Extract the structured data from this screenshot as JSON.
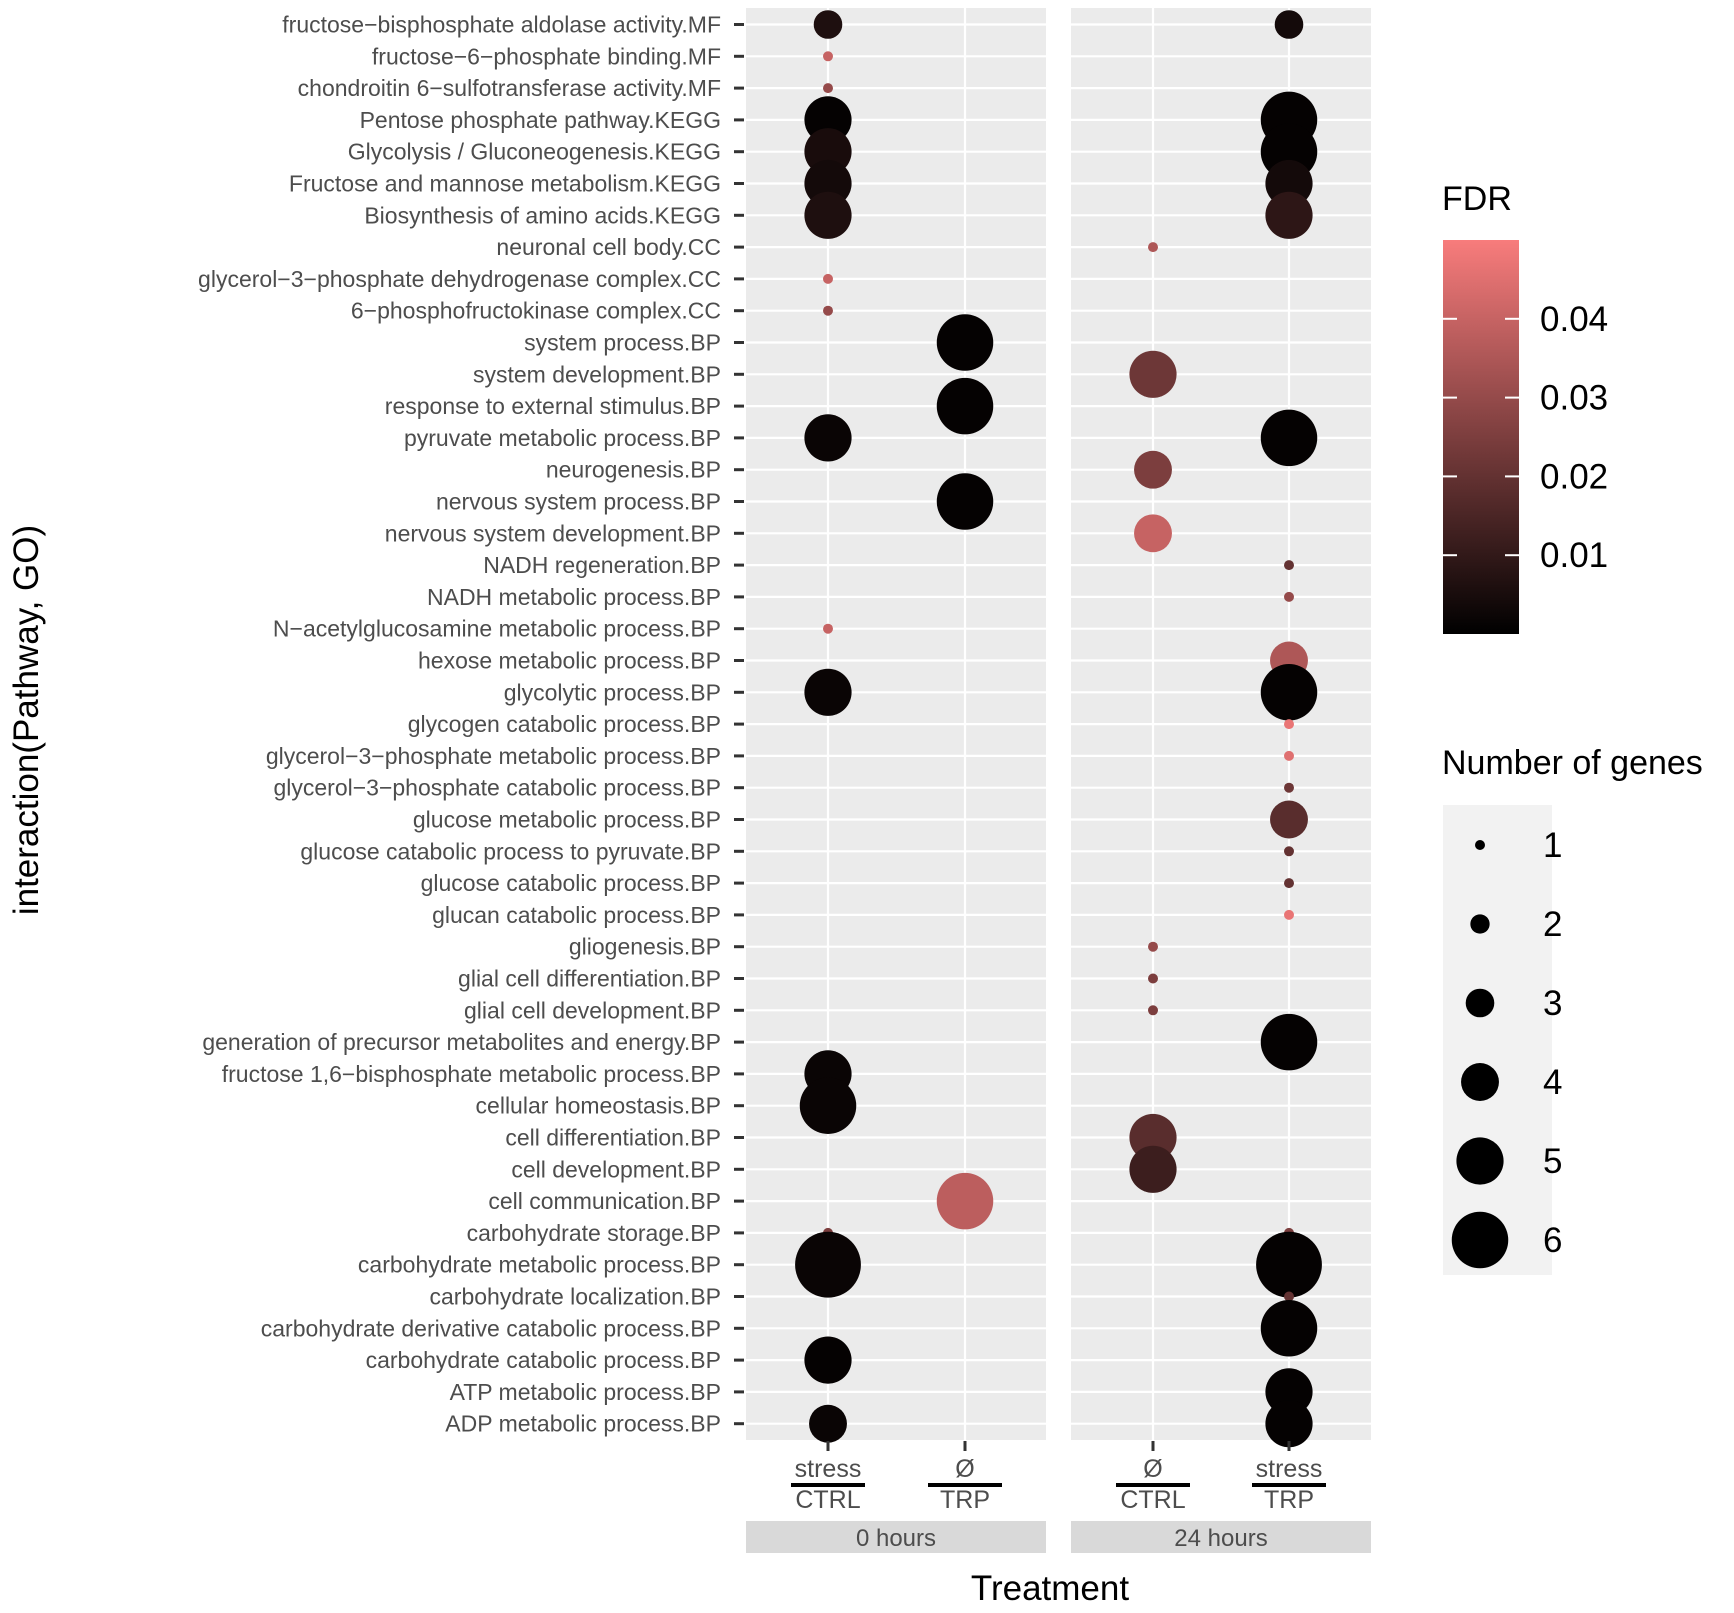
{
  "chart_data": {
    "type": "scatter",
    "xlabel": "Treatment",
    "ylabel": "interaction(Pathway, GO)",
    "panels": [
      {
        "name": "0 hours",
        "groups": [
          {
            "key": "g0a",
            "top": "stress",
            "bottom": "CTRL"
          },
          {
            "key": "g0b",
            "top": "Ø",
            "bottom": "TRP"
          }
        ]
      },
      {
        "name": "24 hours",
        "groups": [
          {
            "key": "g24a",
            "top": "Ø",
            "bottom": "CTRL"
          },
          {
            "key": "g24b",
            "top": "stress",
            "bottom": "TRP"
          }
        ]
      }
    ],
    "categories": [
      "fructose−bisphosphate aldolase activity.MF",
      "fructose−6−phosphate binding.MF",
      "chondroitin 6−sulfotransferase activity.MF",
      "Pentose phosphate pathway.KEGG",
      "Glycolysis / Gluconeogenesis.KEGG",
      "Fructose and mannose metabolism.KEGG",
      "Biosynthesis of amino acids.KEGG",
      "neuronal cell body.CC",
      "glycerol−3−phosphate dehydrogenase complex.CC",
      "6−phosphofructokinase complex.CC",
      "system process.BP",
      "system development.BP",
      "response to external stimulus.BP",
      "pyruvate metabolic process.BP",
      "neurogenesis.BP",
      "nervous system process.BP",
      "nervous system development.BP",
      "NADH regeneration.BP",
      "NADH metabolic process.BP",
      "N−acetylglucosamine metabolic process.BP",
      "hexose metabolic process.BP",
      "glycolytic process.BP",
      "glycogen catabolic process.BP",
      "glycerol−3−phosphate metabolic process.BP",
      "glycerol−3−phosphate catabolic process.BP",
      "glucose metabolic process.BP",
      "glucose catabolic process to pyruvate.BP",
      "glucose catabolic process.BP",
      "glucan catabolic process.BP",
      "gliogenesis.BP",
      "glial cell differentiation.BP",
      "glial cell development.BP",
      "generation of precursor metabolites and energy.BP",
      "fructose 1,6−bisphosphate metabolic process.BP",
      "cellular homeostasis.BP",
      "cell differentiation.BP",
      "cell development.BP",
      "cell communication.BP",
      "carbohydrate storage.BP",
      "carbohydrate metabolic process.BP",
      "carbohydrate localization.BP",
      "carbohydrate derivative catabolic process.BP",
      "carbohydrate catabolic process.BP",
      "ATP metabolic process.BP",
      "ADP metabolic process.BP"
    ],
    "points": [
      {
        "cat": 0,
        "group": "g0a",
        "genes": 3,
        "fdr": 0.006
      },
      {
        "cat": 0,
        "group": "g24b",
        "genes": 3,
        "fdr": 0.004
      },
      {
        "cat": 1,
        "group": "g0a",
        "genes": 1,
        "fdr": 0.04
      },
      {
        "cat": 2,
        "group": "g0a",
        "genes": 1,
        "fdr": 0.03
      },
      {
        "cat": 3,
        "group": "g0a",
        "genes": 5,
        "fdr": 0.001
      },
      {
        "cat": 3,
        "group": "g24b",
        "genes": 6,
        "fdr": 0.001
      },
      {
        "cat": 4,
        "group": "g0a",
        "genes": 5,
        "fdr": 0.005
      },
      {
        "cat": 4,
        "group": "g24b",
        "genes": 6,
        "fdr": 0.001
      },
      {
        "cat": 5,
        "group": "g0a",
        "genes": 5,
        "fdr": 0.004
      },
      {
        "cat": 5,
        "group": "g24b",
        "genes": 5,
        "fdr": 0.004
      },
      {
        "cat": 6,
        "group": "g0a",
        "genes": 5,
        "fdr": 0.006
      },
      {
        "cat": 6,
        "group": "g24b",
        "genes": 5,
        "fdr": 0.009
      },
      {
        "cat": 7,
        "group": "g24a",
        "genes": 1,
        "fdr": 0.035
      },
      {
        "cat": 8,
        "group": "g0a",
        "genes": 1,
        "fdr": 0.04
      },
      {
        "cat": 9,
        "group": "g0a",
        "genes": 1,
        "fdr": 0.03
      },
      {
        "cat": 10,
        "group": "g0b",
        "genes": 6,
        "fdr": 0.001
      },
      {
        "cat": 11,
        "group": "g24a",
        "genes": 5,
        "fdr": 0.022
      },
      {
        "cat": 12,
        "group": "g0b",
        "genes": 6,
        "fdr": 0.001
      },
      {
        "cat": 13,
        "group": "g0a",
        "genes": 5,
        "fdr": 0.002
      },
      {
        "cat": 13,
        "group": "g24b",
        "genes": 6,
        "fdr": 0.001
      },
      {
        "cat": 14,
        "group": "g24a",
        "genes": 4,
        "fdr": 0.025
      },
      {
        "cat": 15,
        "group": "g0b",
        "genes": 6,
        "fdr": 0.001
      },
      {
        "cat": 16,
        "group": "g24a",
        "genes": 4,
        "fdr": 0.04
      },
      {
        "cat": 17,
        "group": "g24b",
        "genes": 1,
        "fdr": 0.02
      },
      {
        "cat": 18,
        "group": "g24b",
        "genes": 1,
        "fdr": 0.03
      },
      {
        "cat": 19,
        "group": "g0a",
        "genes": 1,
        "fdr": 0.04
      },
      {
        "cat": 20,
        "group": "g24b",
        "genes": 4,
        "fdr": 0.035
      },
      {
        "cat": 21,
        "group": "g0a",
        "genes": 5,
        "fdr": 0.002
      },
      {
        "cat": 21,
        "group": "g24b",
        "genes": 6,
        "fdr": 0.001
      },
      {
        "cat": 22,
        "group": "g24b",
        "genes": 1,
        "fdr": 0.047
      },
      {
        "cat": 23,
        "group": "g24b",
        "genes": 1,
        "fdr": 0.045
      },
      {
        "cat": 24,
        "group": "g24b",
        "genes": 1,
        "fdr": 0.022
      },
      {
        "cat": 25,
        "group": "g24b",
        "genes": 4,
        "fdr": 0.018
      },
      {
        "cat": 26,
        "group": "g24b",
        "genes": 1,
        "fdr": 0.02
      },
      {
        "cat": 27,
        "group": "g24b",
        "genes": 1,
        "fdr": 0.02
      },
      {
        "cat": 28,
        "group": "g24b",
        "genes": 1,
        "fdr": 0.047
      },
      {
        "cat": 29,
        "group": "g24a",
        "genes": 1,
        "fdr": 0.03
      },
      {
        "cat": 30,
        "group": "g24a",
        "genes": 1,
        "fdr": 0.025
      },
      {
        "cat": 31,
        "group": "g24a",
        "genes": 1,
        "fdr": 0.025
      },
      {
        "cat": 32,
        "group": "g24b",
        "genes": 6,
        "fdr": 0.001
      },
      {
        "cat": 33,
        "group": "g0a",
        "genes": 5,
        "fdr": 0.002
      },
      {
        "cat": 34,
        "group": "g0a",
        "genes": 6,
        "fdr": 0.002
      },
      {
        "cat": 35,
        "group": "g24a",
        "genes": 5,
        "fdr": 0.018
      },
      {
        "cat": 36,
        "group": "g24a",
        "genes": 5,
        "fdr": 0.012
      },
      {
        "cat": 37,
        "group": "g0b",
        "genes": 6,
        "fdr": 0.038
      },
      {
        "cat": 38,
        "group": "g0a",
        "genes": 1,
        "fdr": 0.025
      },
      {
        "cat": 38,
        "group": "g24b",
        "genes": 1,
        "fdr": 0.025
      },
      {
        "cat": 39,
        "group": "g0a",
        "genes": 7,
        "fdr": 0.002
      },
      {
        "cat": 39,
        "group": "g24b",
        "genes": 7,
        "fdr": 0.001
      },
      {
        "cat": 40,
        "group": "g24b",
        "genes": 1,
        "fdr": 0.02
      },
      {
        "cat": 41,
        "group": "g24b",
        "genes": 6,
        "fdr": 0.001
      },
      {
        "cat": 42,
        "group": "g0a",
        "genes": 5,
        "fdr": 0.001
      },
      {
        "cat": 43,
        "group": "g24b",
        "genes": 5,
        "fdr": 0.001
      },
      {
        "cat": 44,
        "group": "g0a",
        "genes": 4,
        "fdr": 0.002
      },
      {
        "cat": 44,
        "group": "g24b",
        "genes": 5,
        "fdr": 0.001
      }
    ],
    "legend_color": {
      "title": "FDR",
      "range": [
        0,
        0.05
      ],
      "breaks": [
        0.04,
        0.03,
        0.02,
        0.01
      ],
      "labels": [
        "0.04",
        "0.03",
        "0.02",
        "0.01"
      ],
      "low_color": "#000000",
      "high_color": "#f87c7c"
    },
    "legend_size": {
      "title": "Number of genes",
      "breaks": [
        1,
        2,
        3,
        4,
        5,
        6
      ],
      "labels": [
        "1",
        "2",
        "3",
        "4",
        "5",
        "6"
      ]
    }
  }
}
